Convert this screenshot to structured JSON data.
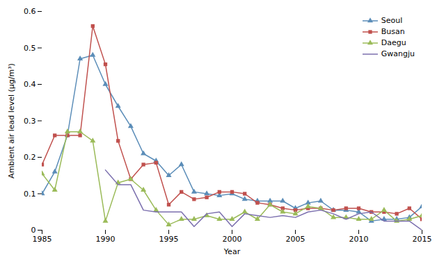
{
  "chart_data": {
    "type": "line",
    "xlabel": "Year",
    "ylabel": "Ambient air lead level (μg/m³)",
    "x": [
      1985,
      1986,
      1987,
      1988,
      1989,
      1990,
      1991,
      1992,
      1993,
      1994,
      1995,
      1996,
      1997,
      1998,
      1999,
      2000,
      2001,
      2002,
      2003,
      2004,
      2005,
      2006,
      2007,
      2008,
      2009,
      2010,
      2011,
      2012,
      2013,
      2014,
      2015
    ],
    "series": [
      {
        "name": "Seoul",
        "color": "#5B8DB8",
        "marker": "triangle",
        "values": [
          0.1,
          0.16,
          0.26,
          0.47,
          0.48,
          0.4,
          0.34,
          0.285,
          0.21,
          0.19,
          0.15,
          0.18,
          0.105,
          0.1,
          0.095,
          0.1,
          0.085,
          0.08,
          0.08,
          0.08,
          0.06,
          0.075,
          0.08,
          0.055,
          0.055,
          0.05,
          0.025,
          0.03,
          0.03,
          0.035,
          0.065
        ]
      },
      {
        "name": "Busan",
        "color": "#C0504D",
        "marker": "square",
        "values": [
          0.18,
          0.26,
          0.26,
          0.26,
          0.56,
          0.455,
          0.245,
          0.14,
          0.18,
          0.185,
          0.07,
          0.105,
          0.085,
          0.09,
          0.105,
          0.105,
          0.1,
          0.075,
          0.07,
          0.06,
          0.055,
          0.06,
          0.06,
          0.055,
          0.06,
          0.06,
          0.05,
          0.05,
          0.045,
          0.06,
          0.03
        ]
      },
      {
        "name": "Daegu",
        "color": "#9BBB59",
        "marker": "triangle",
        "values": [
          0.155,
          0.11,
          0.27,
          0.27,
          0.245,
          0.025,
          0.13,
          0.14,
          0.11,
          0.055,
          0.015,
          0.03,
          0.03,
          0.04,
          0.03,
          0.03,
          0.05,
          0.03,
          0.07,
          0.05,
          0.045,
          0.065,
          0.06,
          0.035,
          0.035,
          0.03,
          0.03,
          0.055,
          0.025,
          0.03,
          0.04
        ]
      },
      {
        "name": "Gwangju",
        "color": "#7B6FAE",
        "marker": "none",
        "values": [
          null,
          null,
          null,
          null,
          null,
          0.165,
          0.125,
          0.125,
          0.055,
          0.05,
          0.05,
          0.05,
          0.01,
          0.045,
          0.05,
          0.01,
          0.045,
          0.04,
          0.035,
          0.04,
          0.035,
          0.05,
          0.055,
          0.045,
          0.03,
          0.045,
          0.05,
          0.025,
          0.025,
          0.025,
          0.0
        ]
      }
    ],
    "xlim": [
      1985,
      2015
    ],
    "xticks": [
      1985,
      1990,
      1995,
      2000,
      2005,
      2010,
      2015
    ],
    "ylim": [
      0,
      0.6
    ],
    "yticks": [
      0,
      0.1,
      0.2,
      0.3,
      0.4,
      0.5,
      0.6
    ],
    "grid": false,
    "legend": "upper right"
  }
}
